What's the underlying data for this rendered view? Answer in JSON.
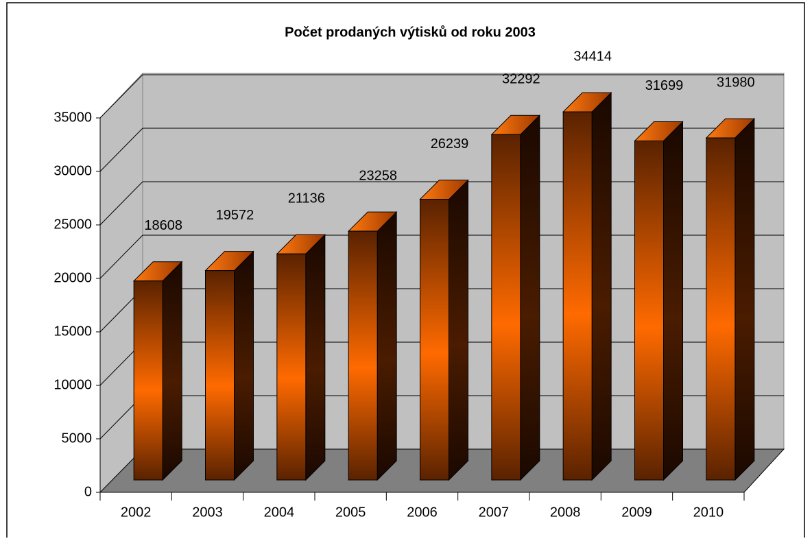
{
  "chart_data": {
    "type": "bar3d",
    "title": "Počet prodaných výtisků od roku 2003",
    "categories": [
      "2002",
      "2003",
      "2004",
      "2005",
      "2006",
      "2007",
      "2008",
      "2009",
      "2010"
    ],
    "values": [
      18608,
      19572,
      21136,
      23258,
      26239,
      32292,
      34414,
      31699,
      31980
    ],
    "color": "#ff6600",
    "ylim": [
      0,
      35000
    ],
    "yticks": [
      0,
      5000,
      10000,
      15000,
      20000,
      25000,
      30000,
      35000
    ],
    "grid": true
  }
}
